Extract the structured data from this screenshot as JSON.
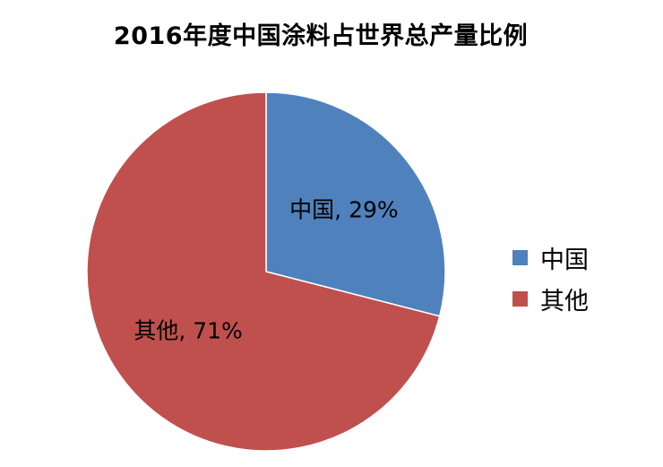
{
  "chart_data": {
    "type": "pie",
    "title": "2016年度中国涂料占世界总产量比例",
    "categories": [
      "中国",
      "其他"
    ],
    "values": [
      29,
      71
    ],
    "unit": "%",
    "data_labels": [
      "中国, 29%",
      "其他, 71%"
    ],
    "colors": [
      "#4f81bd",
      "#c0504d"
    ],
    "legend_position": "right"
  }
}
